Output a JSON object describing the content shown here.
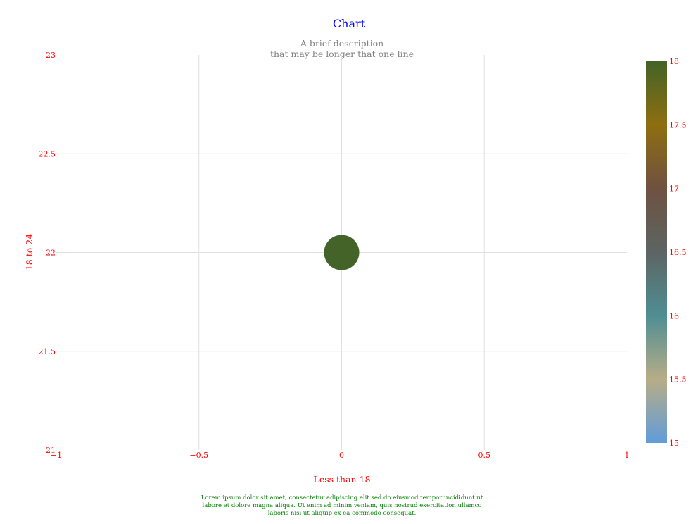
{
  "chart_data": {
    "type": "scatter",
    "title": "Chart",
    "subtitle": [
      "A brief description",
      "that may be longer that one line"
    ],
    "xlabel": "Less than 18",
    "ylabel": "18 to 24",
    "xlim": [
      -1,
      1
    ],
    "ylim": [
      21,
      23
    ],
    "x_ticks": [
      -1,
      -0.5,
      0,
      0.5,
      1
    ],
    "x_tick_labels": [
      "−1",
      "−0.5",
      "0",
      "0.5",
      "1"
    ],
    "y_ticks": [
      21,
      21.5,
      22,
      22.5,
      23
    ],
    "y_tick_labels": [
      "21",
      "21.5",
      "22",
      "22.5",
      "23"
    ],
    "grid": true,
    "points": [
      {
        "x": 0,
        "y": 22,
        "color_value": 18
      }
    ],
    "colorbar": {
      "range": [
        15,
        18
      ],
      "ticks": [
        15,
        15.5,
        16,
        16.5,
        17,
        17.5,
        18
      ],
      "tick_labels": [
        "15",
        "15.5",
        "16",
        "16.5",
        "17",
        "17.5",
        "18"
      ],
      "stops": [
        {
          "value": 15,
          "color": "#619cd9"
        },
        {
          "value": 15.5,
          "color": "#b7ad87"
        },
        {
          "value": 16,
          "color": "#4f8e93"
        },
        {
          "value": 16.5,
          "color": "#5c6563"
        },
        {
          "value": 17,
          "color": "#6f5141"
        },
        {
          "value": 17.5,
          "color": "#8e6e10"
        },
        {
          "value": 18,
          "color": "#436328"
        }
      ]
    },
    "caption": "Lorem ipsum dolor sit amet, consectetur adipiscing elit sed do eiusmod tempor incididunt ut labore et dolore magna aliqua. Ut enim ad minim veniam, quis nostrud exercitation ullamco laboris nisi ut aliquip ex ea commodo consequat.",
    "colors": {
      "title": "#0000ff",
      "subtitle": "#808080",
      "axis_text": "#ff0000",
      "grid": "#e0e0e0",
      "caption": "#008000"
    }
  }
}
